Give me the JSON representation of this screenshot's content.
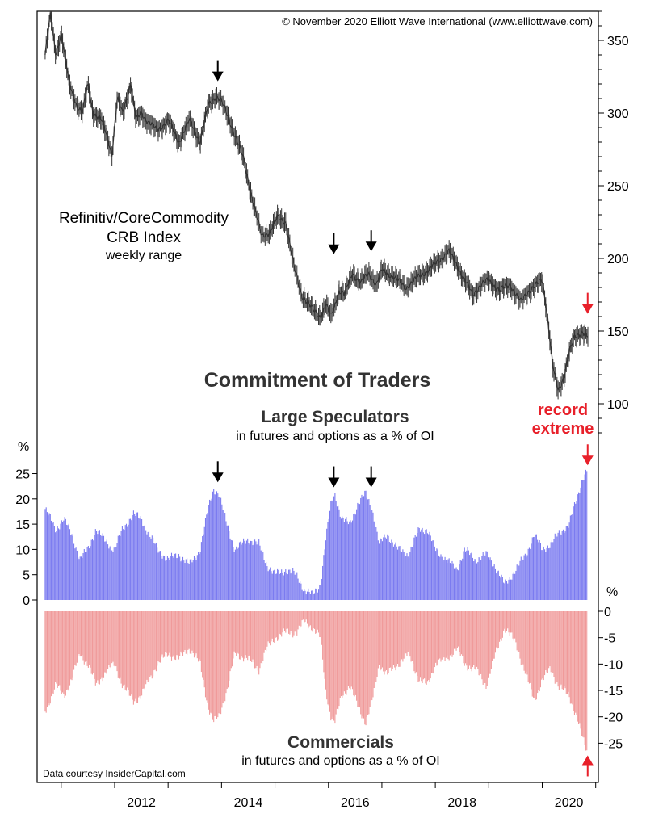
{
  "copyright": "© November 2020 Elliott Wave International (www.elliottwave.com)",
  "source_note": "Data courtesy InsiderCapital.com",
  "section_title": "Commitment of Traders",
  "colors": {
    "price": "#333333",
    "speculators": "#7b7bf0",
    "commercials": "#f09a9a",
    "highlight": "#e8202a",
    "arrow": "#000000"
  },
  "chart_data": [
    {
      "type": "line",
      "title": "Refinitiv/CoreCommodity",
      "subtitle": "CRB Index",
      "subtitle2": "weekly range",
      "ylim": [
        75,
        370
      ],
      "y_ticks": [
        100,
        150,
        200,
        250,
        300,
        350
      ],
      "x_ticks": [
        2012,
        2014,
        2016,
        2018,
        2020
      ],
      "xlim": [
        2010.55,
        2021.05
      ],
      "series": [
        {
          "x": [
            2010.7,
            2010.8,
            2010.9,
            2011.0,
            2011.15,
            2011.3,
            2011.4,
            2011.5,
            2011.6,
            2011.75,
            2011.85,
            2011.95,
            2012.05,
            2012.15,
            2012.3,
            2012.4,
            2012.5,
            2012.6,
            2012.8,
            2013.0,
            2013.2,
            2013.4,
            2013.6,
            2013.75,
            2013.9,
            2014.0,
            2014.2,
            2014.4,
            2014.55,
            2014.75,
            2014.9,
            2015.05,
            2015.2,
            2015.35,
            2015.5,
            2015.7,
            2015.85,
            2015.95,
            2016.05,
            2016.2,
            2016.3,
            2016.45,
            2016.6,
            2016.75,
            2016.9,
            2017.0,
            2017.2,
            2017.45,
            2017.7,
            2017.9,
            2018.05,
            2018.25,
            2018.4,
            2018.55,
            2018.7,
            2018.85,
            2019.0,
            2019.2,
            2019.4,
            2019.6,
            2019.75,
            2019.9,
            2020.0,
            2020.1,
            2020.2,
            2020.3,
            2020.4,
            2020.5,
            2020.6,
            2020.7,
            2020.75,
            2020.83,
            2020.87
          ],
          "y": [
            340,
            368,
            340,
            355,
            320,
            305,
            300,
            320,
            300,
            295,
            285,
            272,
            310,
            300,
            320,
            295,
            300,
            295,
            288,
            295,
            280,
            295,
            280,
            305,
            312,
            308,
            290,
            270,
            245,
            215,
            218,
            228,
            225,
            195,
            175,
            165,
            160,
            168,
            160,
            178,
            175,
            190,
            183,
            190,
            182,
            192,
            188,
            180,
            188,
            193,
            198,
            205,
            196,
            185,
            175,
            182,
            185,
            178,
            182,
            170,
            178,
            182,
            185,
            160,
            125,
            108,
            118,
            135,
            145,
            148,
            150,
            147,
            146
          ]
        }
      ],
      "markers": [
        {
          "x": 2013.93,
          "y": 313
        },
        {
          "x": 2016.1,
          "y": 194
        },
        {
          "x": 2016.8,
          "y": 196
        },
        {
          "x": 2020.85,
          "y": 153,
          "color": "#e8202a"
        }
      ]
    },
    {
      "type": "bar",
      "title": "Large Speculators",
      "subtitle": "in futures and options as a % of OI",
      "ylabel": "%",
      "ylim": [
        0,
        27
      ],
      "y_ticks": [
        0,
        5,
        10,
        15,
        20,
        25
      ],
      "x_ticks": [
        2012,
        2014,
        2016,
        2018,
        2020
      ],
      "annotation": [
        "record",
        "extreme"
      ],
      "x": [
        2010.7,
        2010.9,
        2011.05,
        2011.2,
        2011.35,
        2011.5,
        2011.65,
        2011.8,
        2012.0,
        2012.15,
        2012.35,
        2012.5,
        2012.65,
        2012.8,
        2013.0,
        2013.2,
        2013.4,
        2013.6,
        2013.75,
        2013.85,
        2013.95,
        2014.1,
        2014.25,
        2014.5,
        2014.7,
        2014.85,
        2015.0,
        2015.2,
        2015.4,
        2015.55,
        2015.7,
        2015.85,
        2015.95,
        2016.05,
        2016.12,
        2016.25,
        2016.4,
        2016.55,
        2016.7,
        2016.82,
        2016.95,
        2017.1,
        2017.3,
        2017.5,
        2017.7,
        2017.85,
        2018.0,
        2018.2,
        2018.4,
        2018.55,
        2018.75,
        2018.95,
        2019.1,
        2019.3,
        2019.5,
        2019.7,
        2019.85,
        2020.0,
        2020.15,
        2020.3,
        2020.5,
        2020.65,
        2020.75,
        2020.85
      ],
      "y": [
        18,
        14,
        16,
        13,
        8,
        10,
        14,
        12,
        10,
        14,
        17,
        16,
        13,
        10,
        8,
        9,
        7,
        10,
        18,
        22,
        21,
        15,
        10,
        12,
        11,
        7,
        5,
        6,
        5,
        2,
        1,
        3,
        12,
        19,
        21,
        16,
        15,
        19,
        21,
        18,
        11,
        13,
        10,
        9,
        14,
        14,
        10,
        8,
        6,
        10,
        8,
        9,
        7,
        3,
        6,
        9,
        13,
        10,
        11,
        13,
        15,
        20,
        24,
        26
      ]
    },
    {
      "type": "bar",
      "title": "Commercials",
      "subtitle": "in futures and options as a % of OI",
      "ylabel": "%",
      "ylim": [
        -28,
        0
      ],
      "y_ticks": [
        0,
        -5,
        -10,
        -15,
        -20,
        -25
      ],
      "x_ticks": [
        2012,
        2014,
        2016,
        2018,
        2020
      ],
      "x": [
        2010.7,
        2010.9,
        2011.05,
        2011.2,
        2011.35,
        2011.5,
        2011.65,
        2011.8,
        2012.0,
        2012.15,
        2012.35,
        2012.5,
        2012.65,
        2012.8,
        2013.0,
        2013.2,
        2013.4,
        2013.6,
        2013.75,
        2013.85,
        2013.95,
        2014.1,
        2014.25,
        2014.5,
        2014.7,
        2014.85,
        2015.0,
        2015.2,
        2015.4,
        2015.55,
        2015.7,
        2015.85,
        2015.95,
        2016.05,
        2016.12,
        2016.25,
        2016.4,
        2016.55,
        2016.7,
        2016.82,
        2016.95,
        2017.1,
        2017.3,
        2017.5,
        2017.7,
        2017.85,
        2018.0,
        2018.2,
        2018.4,
        2018.55,
        2018.75,
        2018.95,
        2019.1,
        2019.3,
        2019.5,
        2019.7,
        2019.85,
        2020.0,
        2020.15,
        2020.3,
        2020.5,
        2020.65,
        2020.75,
        2020.85
      ],
      "y": [
        -19,
        -14,
        -16,
        -13,
        -8,
        -10,
        -14,
        -12,
        -10,
        -14,
        -17,
        -16,
        -13,
        -10,
        -8,
        -9,
        -7,
        -10,
        -18,
        -21,
        -20,
        -15,
        -8,
        -9,
        -11,
        -7,
        -5,
        -4,
        -4,
        -2,
        -3,
        -5,
        -15,
        -20,
        -21,
        -16,
        -14,
        -18,
        -21,
        -17,
        -10,
        -12,
        -10,
        -8,
        -13,
        -14,
        -10,
        -9,
        -7,
        -10,
        -11,
        -14,
        -9,
        -3,
        -6,
        -12,
        -17,
        -13,
        -11,
        -14,
        -16,
        -20,
        -24,
        -27
      ]
    }
  ]
}
